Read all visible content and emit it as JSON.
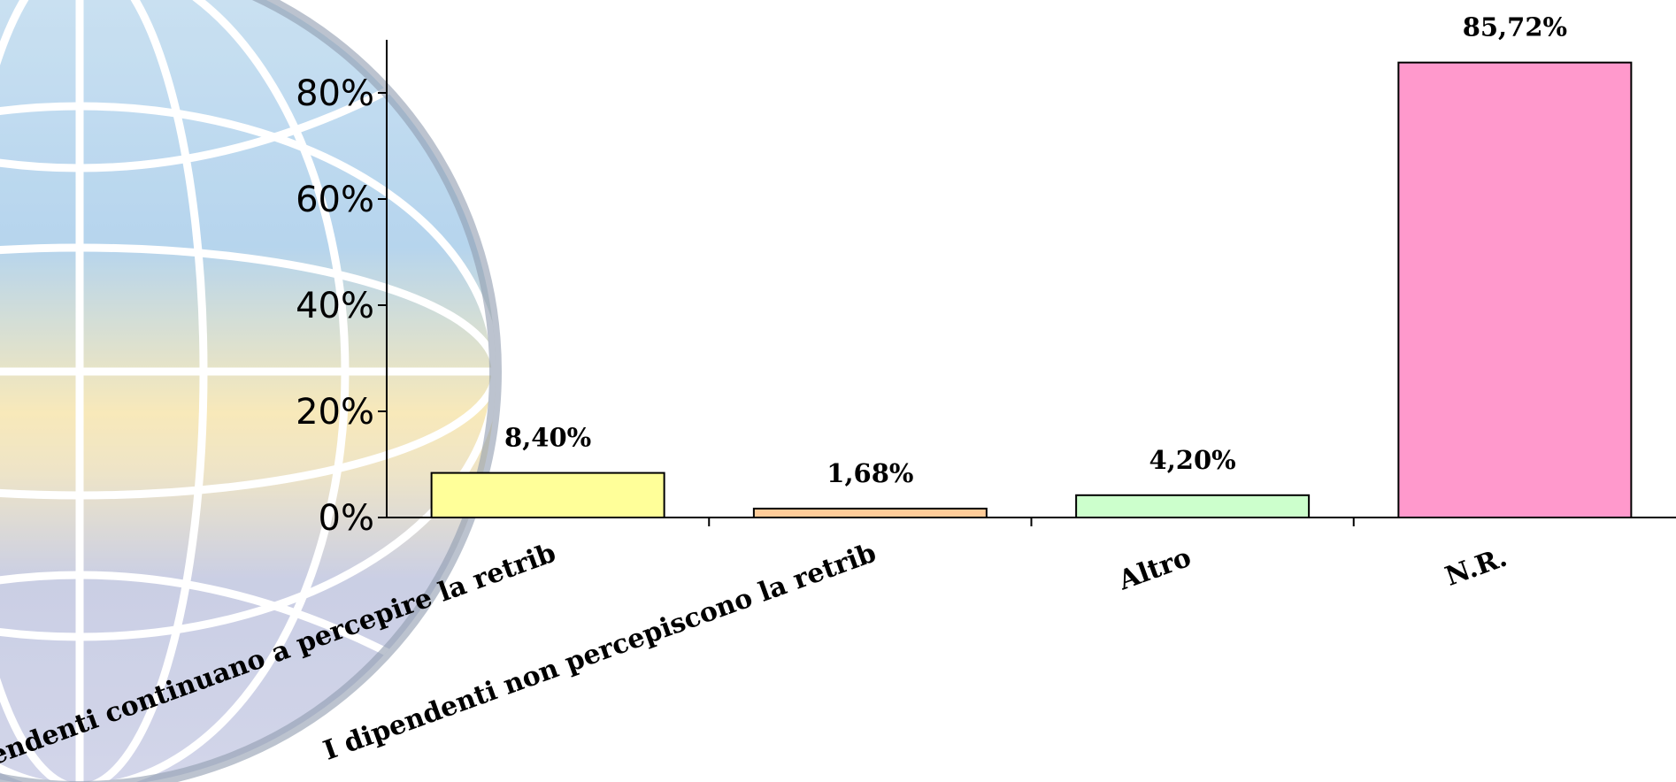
{
  "chart_data": {
    "type": "bar",
    "title": "",
    "xlabel": "",
    "ylabel": "",
    "ylim": [
      0,
      90
    ],
    "y_ticks": [
      {
        "value": 0,
        "label": "0%"
      },
      {
        "value": 20,
        "label": "20%"
      },
      {
        "value": 40,
        "label": "40%"
      },
      {
        "value": 60,
        "label": "60%"
      },
      {
        "value": 80,
        "label": "80%"
      }
    ],
    "grid": false,
    "legend": "none",
    "categories": [
      "I dipendenti continuano a percepire la retrib",
      "I dipendenti non percepiscono la retrib",
      "Altro",
      "N.R."
    ],
    "values": [
      8.4,
      1.68,
      4.2,
      85.72
    ],
    "data_labels": [
      "8,40%",
      "1,68%",
      "4,20%",
      "85,72%"
    ],
    "colors": [
      "#FFFF99",
      "#FFCC99",
      "#CCFFCC",
      "#FF99CC"
    ],
    "bar_stroke": "#000000"
  },
  "background": {
    "watermark": "globe-logo"
  }
}
